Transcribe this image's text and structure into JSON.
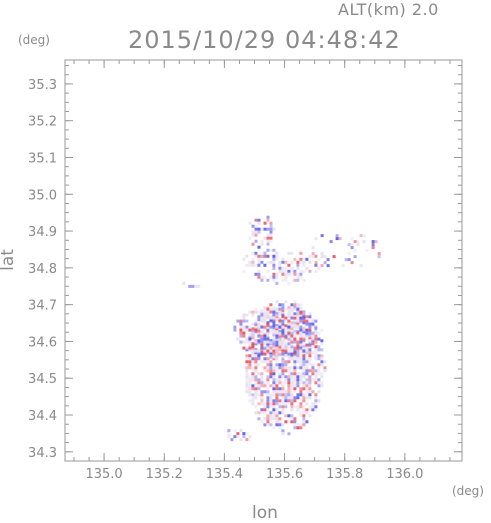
{
  "header": {
    "altitude_label": "ALT(km) 2.0",
    "datetime": "2015/10/29 04:48:42"
  },
  "chart_data": {
    "type": "heatmap",
    "title": "2015/10/29 04:48:42",
    "subtitle": "ALT(km) 2.0",
    "xlabel": "lon",
    "ylabel": "lat",
    "xunit": "(deg)",
    "yunit": "(deg)",
    "xlim": [
      134.87,
      136.19
    ],
    "ylim": [
      34.275,
      35.365
    ],
    "xticks": [
      135.0,
      135.2,
      135.4,
      135.6,
      135.8,
      136.0
    ],
    "xtick_labels": [
      "135.0",
      "135.2",
      "135.4",
      "135.6",
      "135.8",
      "136.0"
    ],
    "yticks": [
      34.3,
      34.4,
      34.5,
      34.6,
      34.7,
      34.8,
      34.9,
      35.0,
      35.1,
      35.2,
      35.3
    ],
    "ytick_labels": [
      "34.3",
      "34.4",
      "34.5",
      "34.6",
      "34.7",
      "34.8",
      "34.9",
      "35.0",
      "35.1",
      "35.2",
      "35.3"
    ],
    "minor_ticks": true,
    "grid": false,
    "colors": {
      "positive": "#e8505a",
      "negative": "#5a5ae8",
      "neutral": "#e8e0ee"
    },
    "regions": [
      {
        "lon": [
          135.46,
          135.73
        ],
        "lat": [
          34.35,
          34.72
        ],
        "density": 0.85
      },
      {
        "lon": [
          135.42,
          135.72
        ],
        "lat": [
          34.56,
          34.7
        ],
        "density": 0.75
      },
      {
        "lon": [
          135.47,
          135.56
        ],
        "lat": [
          34.86,
          34.95
        ],
        "density": 0.6
      },
      {
        "lon": [
          135.45,
          135.72
        ],
        "lat": [
          34.76,
          34.86
        ],
        "density": 0.45
      },
      {
        "lon": [
          135.66,
          135.92
        ],
        "lat": [
          34.8,
          34.9
        ],
        "density": 0.2
      },
      {
        "lon": [
          135.4,
          135.5
        ],
        "lat": [
          34.33,
          34.37
        ],
        "density": 0.5
      },
      {
        "lon": [
          135.25,
          135.32
        ],
        "lat": [
          34.75,
          34.77
        ],
        "density": 0.3
      }
    ]
  }
}
